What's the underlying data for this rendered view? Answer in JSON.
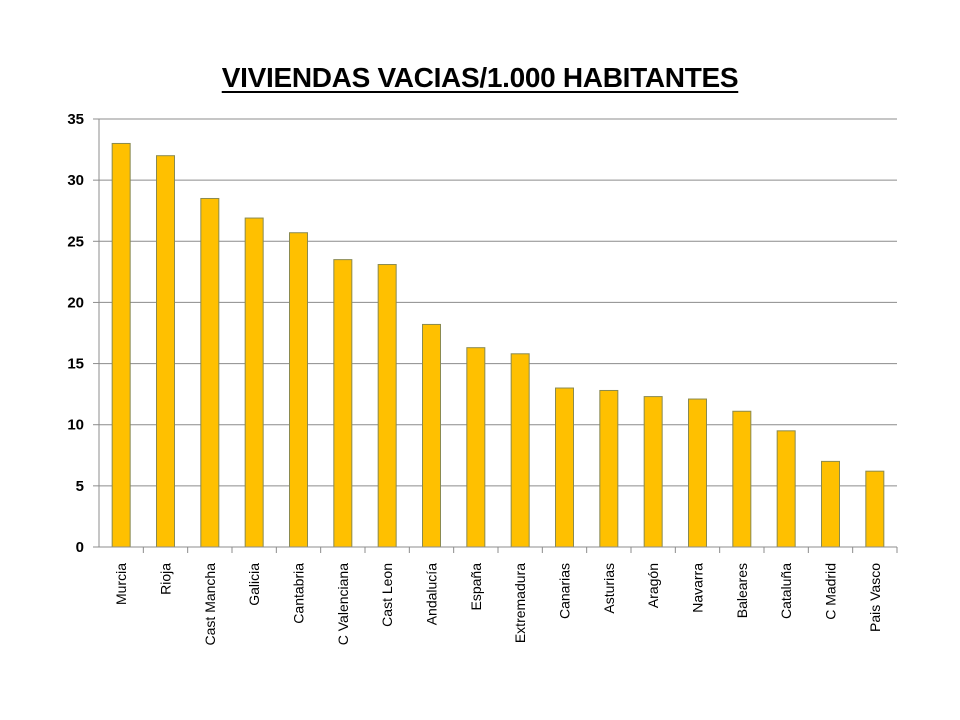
{
  "chart_data": {
    "type": "bar",
    "title": "VIVIENDAS VACIAS/1.000 HABITANTES",
    "xlabel": "",
    "ylabel": "",
    "categories": [
      "Murcia",
      "Rioja",
      "Cast Mancha",
      "Galicia",
      "Cantabria",
      "C Valenciana",
      "Cast Leon",
      "Andalucía",
      "España",
      "Extremadura",
      "Canarias",
      "Asturias",
      "Aragón",
      "Navarra",
      "Baleares",
      "Cataluña",
      "C Madrid",
      "Pais Vasco"
    ],
    "values": [
      33,
      32,
      28.5,
      26.9,
      25.7,
      23.5,
      23.1,
      18.2,
      16.3,
      15.8,
      13.0,
      12.8,
      12.3,
      12.1,
      11.1,
      9.5,
      7.0,
      6.2
    ],
    "ylim": [
      0,
      35
    ],
    "yticks": [
      0,
      5,
      10,
      15,
      20,
      25,
      30,
      35
    ],
    "grid": true,
    "legend": "none",
    "bar_color": "#FFC000",
    "bar_edge_color": "#8a8a50",
    "grid_color": "#8c8c8c"
  }
}
